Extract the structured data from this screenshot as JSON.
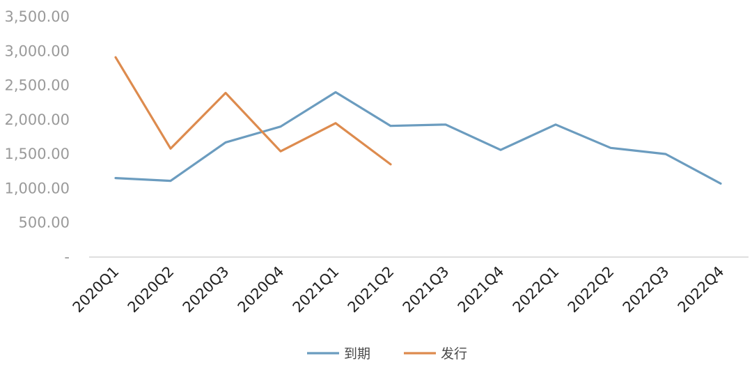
{
  "chart_data": {
    "type": "line",
    "categories": [
      "2020Q1",
      "2020Q2",
      "2020Q3",
      "2020Q4",
      "2021Q1",
      "2021Q2",
      "2021Q3",
      "2021Q4",
      "2022Q1",
      "2022Q2",
      "2022Q3",
      "2022Q4"
    ],
    "series": [
      {
        "name": "到期",
        "color": "#6b9cbf",
        "values": [
          1150,
          1110,
          1670,
          1900,
          2400,
          1910,
          1930,
          1560,
          1930,
          1590,
          1500,
          1070
        ]
      },
      {
        "name": "发行",
        "color": "#dd8b4e",
        "values": [
          2910,
          1580,
          2390,
          1540,
          1950,
          1350,
          null,
          null,
          null,
          null,
          null,
          null
        ]
      }
    ],
    "ylim": [
      0,
      3500
    ],
    "y_ticks": [
      0,
      500,
      1000,
      1500,
      2000,
      2500,
      3000,
      3500
    ],
    "y_tick_labels": [
      "-",
      "500.00",
      "1,000.00",
      "1,500.00",
      "2,000.00",
      "2,500.00",
      "3,000.00",
      "3,500.00"
    ],
    "title": "",
    "xlabel": "",
    "ylabel": "",
    "grid": false,
    "legend_position": "bottom"
  }
}
